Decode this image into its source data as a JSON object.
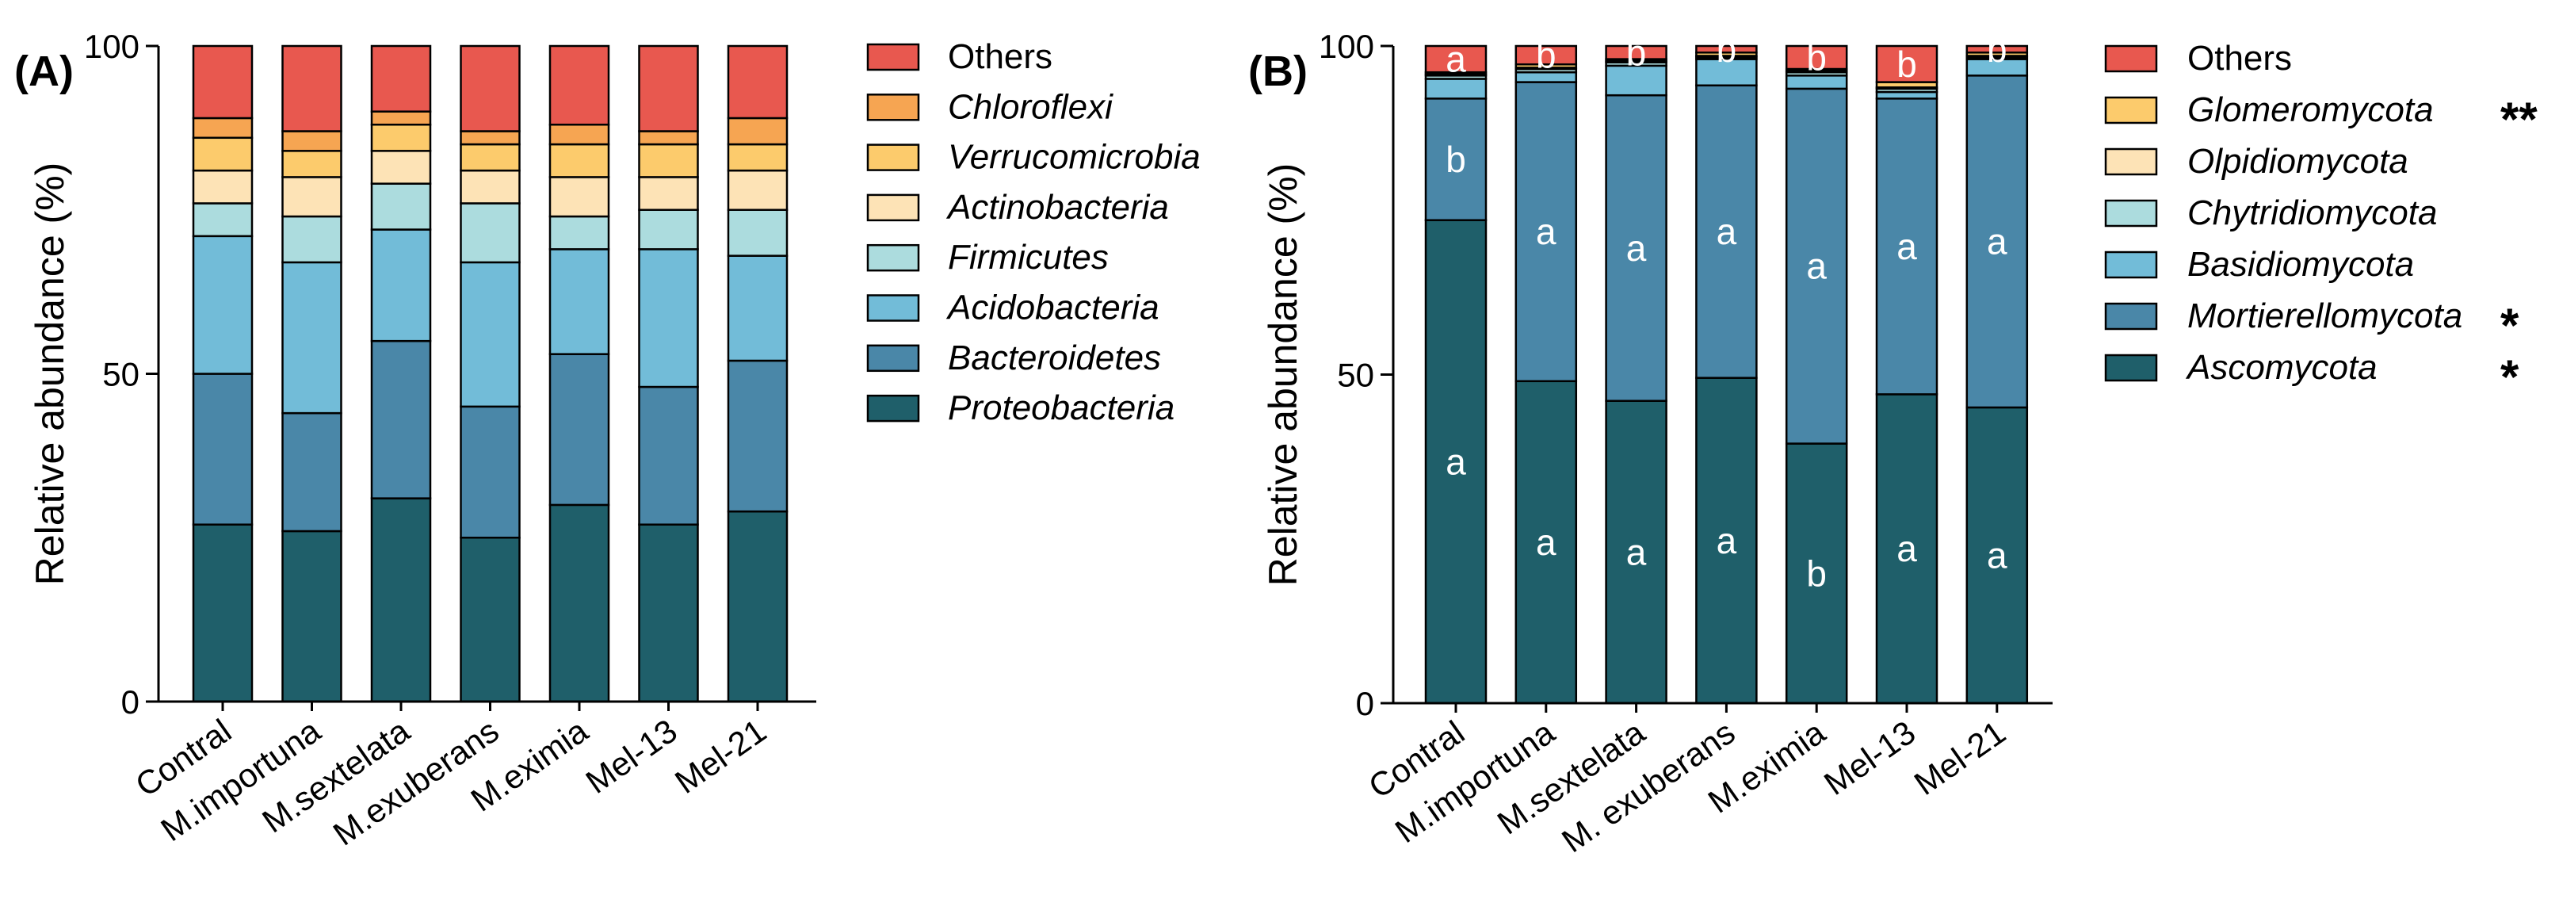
{
  "colors": {
    "Proteobacteria": "#1f5f6a",
    "Bacteroidetes": "#4a87a8",
    "Acidobacteria": "#72bcd8",
    "Firmicutes": "#acdcde",
    "Actinobacteria": "#fde3b6",
    "Verrucomicrobia": "#fccb6c",
    "Chloroflexi": "#f6a552",
    "Others": "#e8584f",
    "Ascomycota": "#1f5f6a",
    "Mortierellomycota": "#4a87a8",
    "Basidiomycota": "#72bcd8",
    "Chytridiomycota": "#acdcde",
    "Olpidiomycota": "#fde3b6",
    "Glomeromycota": "#fccb6c"
  },
  "chart_data": [
    {
      "type": "bar",
      "stacked": true,
      "panel_label": "(A)",
      "ylabel": "Relative abundance (%)",
      "ylim": [
        0,
        100
      ],
      "yticks": [
        "0",
        "50",
        "100"
      ],
      "categories": [
        "Contral",
        "M.importuna",
        "M.sextelata",
        "M.exuberans",
        "M.eximia",
        "Mel-13",
        "Mel-21"
      ],
      "series": [
        {
          "name": "Proteobacteria",
          "italic": true,
          "values": [
            27,
            26,
            31,
            25,
            30,
            27,
            29
          ]
        },
        {
          "name": "Bacteroidetes",
          "italic": true,
          "values": [
            23,
            18,
            24,
            20,
            23,
            21,
            23
          ]
        },
        {
          "name": "Acidobacteria",
          "italic": true,
          "values": [
            21,
            23,
            17,
            22,
            16,
            21,
            16
          ]
        },
        {
          "name": "Firmicutes",
          "italic": true,
          "values": [
            5,
            7,
            7,
            9,
            5,
            6,
            7
          ]
        },
        {
          "name": "Actinobacteria",
          "italic": true,
          "values": [
            5,
            6,
            5,
            5,
            6,
            5,
            6
          ]
        },
        {
          "name": "Verrucomicrobia",
          "italic": true,
          "values": [
            5,
            4,
            4,
            4,
            5,
            5,
            4
          ]
        },
        {
          "name": "Chloroflexi",
          "italic": true,
          "values": [
            3,
            3,
            2,
            2,
            3,
            2,
            4
          ]
        },
        {
          "name": "Others",
          "italic": false,
          "values": [
            11,
            13,
            10,
            13,
            12,
            13,
            11
          ]
        }
      ],
      "legend": [
        {
          "name": "Others",
          "italic": false,
          "star": ""
        },
        {
          "name": "Chloroflexi",
          "italic": true,
          "star": ""
        },
        {
          "name": "Verrucomicrobia",
          "italic": true,
          "star": ""
        },
        {
          "name": "Actinobacteria",
          "italic": true,
          "star": ""
        },
        {
          "name": "Firmicutes",
          "italic": true,
          "star": ""
        },
        {
          "name": "Acidobacteria",
          "italic": true,
          "star": ""
        },
        {
          "name": "Bacteroidetes",
          "italic": true,
          "star": ""
        },
        {
          "name": "Proteobacteria",
          "italic": true,
          "star": ""
        }
      ],
      "legend_position": "right"
    },
    {
      "type": "bar",
      "stacked": true,
      "panel_label": "(B)",
      "ylabel": "Relative abundance (%)",
      "ylim": [
        0,
        100
      ],
      "yticks": [
        "0",
        "50",
        "100"
      ],
      "categories": [
        "Contral",
        "M.importuna",
        "M.sextelata",
        "M. exuberans",
        "M.eximia",
        "Mel-13",
        "Mel-21"
      ],
      "series": [
        {
          "name": "Ascomycota",
          "italic": true,
          "values": [
            73.5,
            49.0,
            46.0,
            49.5,
            39.5,
            47.0,
            45.0
          ],
          "letters": [
            "a",
            "a",
            "a",
            "a",
            "b",
            "a",
            "a"
          ]
        },
        {
          "name": "Mortierellomycota",
          "italic": true,
          "values": [
            18.5,
            45.5,
            46.5,
            44.5,
            54.0,
            45.0,
            50.5
          ],
          "letters": [
            "b",
            "a",
            "a",
            "a",
            "a",
            "a",
            "a"
          ]
        },
        {
          "name": "Basidiomycota",
          "italic": true,
          "values": [
            3.0,
            1.5,
            4.5,
            4.0,
            2.0,
            1.0,
            2.5
          ],
          "letters": [
            "",
            "",
            "",
            "",
            "",
            "",
            ""
          ]
        },
        {
          "name": "Chytridiomycota",
          "italic": true,
          "values": [
            0.5,
            0.5,
            0.5,
            0.3,
            0.5,
            0.5,
            0.3
          ],
          "letters": [
            "",
            "",
            "",
            "",
            "",
            "",
            ""
          ]
        },
        {
          "name": "Olpidiomycota",
          "italic": true,
          "values": [
            0.2,
            0.2,
            0.2,
            0.2,
            0.2,
            0.2,
            0.2
          ],
          "letters": [
            "",
            "",
            "",
            "",
            "",
            "",
            ""
          ]
        },
        {
          "name": "Glomeromycota",
          "italic": true,
          "values": [
            0.3,
            0.5,
            0.3,
            0.5,
            0.3,
            0.8,
            0.5
          ],
          "letters": [
            "",
            "",
            "",
            "",
            "",
            "",
            ""
          ]
        },
        {
          "name": "Others",
          "italic": false,
          "values": [
            4.0,
            2.8,
            2.0,
            1.0,
            3.5,
            5.5,
            1.0
          ],
          "letters": [
            "a",
            "b",
            "b",
            "b",
            "b",
            "b",
            "b"
          ]
        }
      ],
      "legend": [
        {
          "name": "Others",
          "italic": false,
          "star": ""
        },
        {
          "name": "Glomeromycota",
          "italic": true,
          "star": "**"
        },
        {
          "name": "Olpidiomycota",
          "italic": true,
          "star": ""
        },
        {
          "name": "Chytridiomycota",
          "italic": true,
          "star": ""
        },
        {
          "name": "Basidiomycota",
          "italic": true,
          "star": ""
        },
        {
          "name": "Mortierellomycota",
          "italic": true,
          "star": "*"
        },
        {
          "name": "Ascomycota",
          "italic": true,
          "star": "*"
        }
      ],
      "legend_position": "right"
    }
  ]
}
